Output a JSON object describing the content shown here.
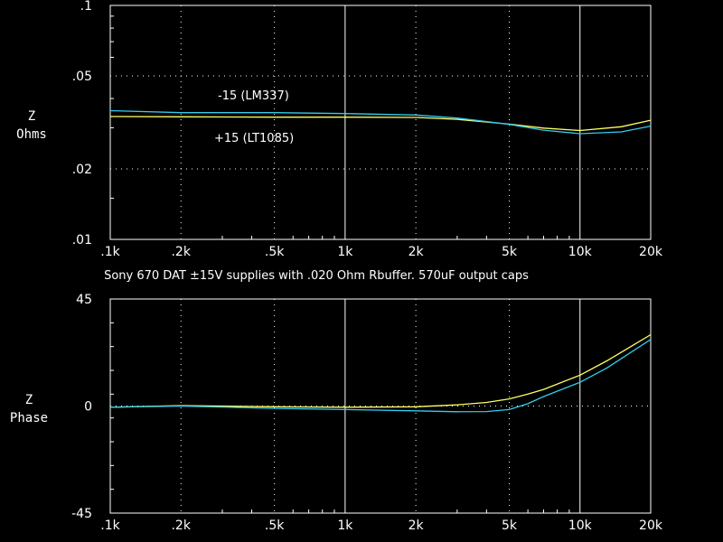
{
  "title": "Sony 670 DAT ±15V supplies with .020 Ohm Rbuffer. 570uF output caps",
  "colors": {
    "background": "#000000",
    "axis": "#ffffff",
    "grid": "#ffffff",
    "series_pos": "#ffff66",
    "series_neg": "#33ccee"
  },
  "chart_data": [
    {
      "type": "line",
      "ylabel": [
        "Z",
        "Ohms"
      ],
      "x_scale": "log",
      "xlim": [
        100,
        20000
      ],
      "x_ticks": [
        {
          "value": 100,
          "label": ".1k"
        },
        {
          "value": 200,
          "label": ".2k"
        },
        {
          "value": 500,
          "label": ".5k"
        },
        {
          "value": 1000,
          "label": "1k"
        },
        {
          "value": 2000,
          "label": "2k"
        },
        {
          "value": 5000,
          "label": "5k"
        },
        {
          "value": 10000,
          "label": "10k"
        },
        {
          "value": 20000,
          "label": "20k"
        }
      ],
      "y_scale": "log",
      "ylim": [
        0.01,
        0.1
      ],
      "y_ticks": [
        {
          "value": 0.1,
          "label": ".1"
        },
        {
          "value": 0.05,
          "label": ".05"
        },
        {
          "value": 0.02,
          "label": ".02"
        },
        {
          "value": 0.01,
          "label": ".01"
        }
      ],
      "annotations": [
        "-15 (LM337)",
        "+15 (LT1085)"
      ],
      "x": [
        100,
        200,
        500,
        1000,
        2000,
        3000,
        5000,
        7000,
        10000,
        15000,
        20000
      ],
      "series": [
        {
          "name": "+15 (LT1085)",
          "color": "#ffff66",
          "values": [
            0.0335,
            0.0334,
            0.0333,
            0.0333,
            0.0332,
            0.0326,
            0.0311,
            0.0299,
            0.0292,
            0.0303,
            0.0323
          ]
        },
        {
          "name": "-15 (LM337)",
          "color": "#33ccee",
          "values": [
            0.0355,
            0.0348,
            0.0348,
            0.0345,
            0.034,
            0.033,
            0.031,
            0.0293,
            0.0283,
            0.0288,
            0.0305
          ]
        }
      ]
    },
    {
      "type": "line",
      "ylabel": [
        "Z",
        "Phase"
      ],
      "x_scale": "log",
      "xlim": [
        100,
        20000
      ],
      "x_ticks": [
        {
          "value": 100,
          "label": ".1k"
        },
        {
          "value": 200,
          "label": ".2k"
        },
        {
          "value": 500,
          "label": ".5k"
        },
        {
          "value": 1000,
          "label": "1k"
        },
        {
          "value": 2000,
          "label": "2k"
        },
        {
          "value": 5000,
          "label": "5k"
        },
        {
          "value": 10000,
          "label": "10k"
        },
        {
          "value": 20000,
          "label": "20k"
        }
      ],
      "y_scale": "linear",
      "ylim": [
        -45,
        45
      ],
      "y_ticks": [
        {
          "value": 45,
          "label": "45"
        },
        {
          "value": 0,
          "label": "0"
        },
        {
          "value": -45,
          "label": "-45"
        }
      ],
      "x": [
        100,
        200,
        500,
        1000,
        2000,
        3000,
        4000,
        5000,
        6000,
        7000,
        10000,
        13000,
        20000
      ],
      "series": [
        {
          "name": "+15 (LT1085)",
          "color": "#ffff66",
          "values": [
            -0.5,
            0.2,
            -0.3,
            -0.5,
            -0.3,
            0.5,
            1.5,
            3,
            5,
            7,
            13,
            19,
            30
          ]
        },
        {
          "name": "-15 (LM337)",
          "color": "#33ccee",
          "values": [
            -0.5,
            0,
            -1,
            -1.5,
            -2,
            -2.4,
            -2.3,
            -1.5,
            1,
            4,
            10,
            16,
            28
          ]
        }
      ]
    }
  ]
}
